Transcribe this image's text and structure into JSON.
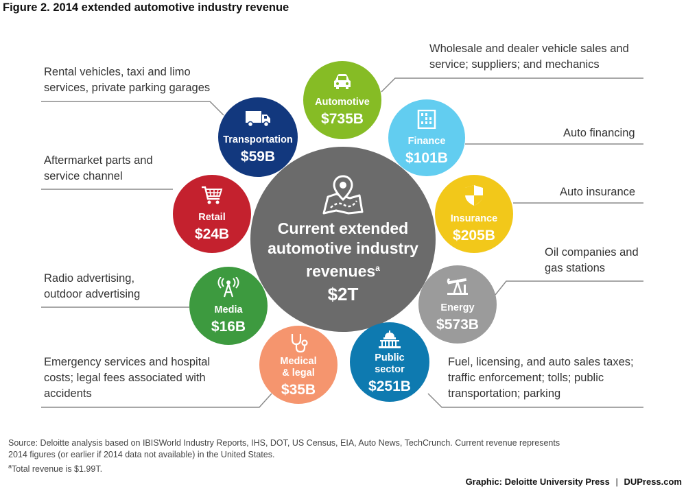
{
  "title": "Figure 2. 2014 extended automotive industry revenue",
  "center": {
    "line1": "Current extended",
    "line2": "automotive industry",
    "line3": "revenues",
    "footnote_mark": "a",
    "value": "$2T"
  },
  "segments": [
    {
      "name": "Automotive",
      "value": "$735B",
      "color": "#86bc25",
      "icon": "car-icon",
      "description": [
        "Wholesale and dealer vehicle sales and",
        "service; suppliers; and mechanics"
      ]
    },
    {
      "name": "Finance",
      "value": "$101B",
      "color": "#62cdf0",
      "icon": "abacus-icon",
      "description": [
        "Auto financing"
      ]
    },
    {
      "name": "Insurance",
      "value": "$205B",
      "color": "#f2c81a",
      "icon": "shield-icon",
      "description": [
        "Auto insurance"
      ]
    },
    {
      "name": "Energy",
      "value": "$573B",
      "color": "#9b9b9b",
      "icon": "oil-pump-icon",
      "description": [
        "Oil companies and",
        "gas stations"
      ]
    },
    {
      "name": "Public sector",
      "name_lines": [
        "Public",
        "sector"
      ],
      "value": "$251B",
      "color": "#0e7ab0",
      "icon": "capitol-icon",
      "description": [
        "Fuel, licensing, and auto sales taxes;",
        "traffic enforcement; tolls; public",
        "transportation; parking"
      ]
    },
    {
      "name": "Medical & legal",
      "name_lines": [
        "Medical",
        "& legal"
      ],
      "value": "$35B",
      "color": "#f5956e",
      "icon": "stethoscope-icon",
      "description": [
        "Emergency services and hospital",
        "costs; legal fees associated with",
        "accidents"
      ]
    },
    {
      "name": "Media",
      "value": "$16B",
      "color": "#3d9a3f",
      "icon": "radio-tower-icon",
      "description": [
        "Radio advertising,",
        "outdoor advertising"
      ]
    },
    {
      "name": "Retail",
      "value": "$24B",
      "color": "#c4212e",
      "icon": "shopping-cart-icon",
      "description": [
        "Aftermarket parts and",
        "service channel"
      ]
    },
    {
      "name": "Transportation",
      "value": "$59B",
      "color": "#12387e",
      "icon": "truck-icon",
      "description": [
        "Rental vehicles, taxi and limo",
        "services, private parking garages"
      ]
    }
  ],
  "source": {
    "line1": "Source: Deloitte analysis based on IBISWorld Industry Reports, IHS, DOT, US Census, EIA, Auto News, TechCrunch. Current revenue represents",
    "line2": "2014 figures (or earlier if 2014 data not available) in the United States.",
    "footnote_mark": "a",
    "footnote": "Total revenue is $1.99T."
  },
  "credit": {
    "prefix": "Graphic: Deloitte University Press",
    "separator": "|",
    "site": "DUPress.com"
  }
}
